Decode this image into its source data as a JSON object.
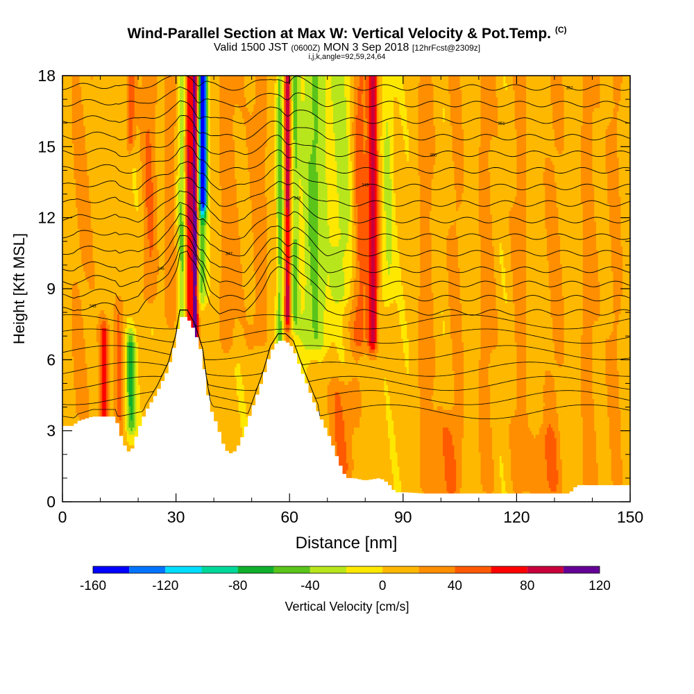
{
  "chart_data": {
    "type": "heatmap",
    "title": "Wind-Parallel Section at Max W: Vertical Velocity & Pot.Temp.",
    "title_mark": "(C)",
    "subtitle": {
      "valid": "Valid 1500 JST",
      "utc": "(0600Z)",
      "date": "MON 3 Sep 2018",
      "forecast": "[12hrFcst@2309z]"
    },
    "grid_info": "i,j,k,angle=92,59,24,64",
    "xlabel": "Distance [nm]",
    "ylabel": "Height [Kft MSL]",
    "xlim": [
      0,
      150
    ],
    "ylim": [
      0,
      18
    ],
    "x_ticks": [
      "0",
      "30",
      "60",
      "90",
      "120",
      "150"
    ],
    "y_ticks": [
      "0",
      "3",
      "6",
      "9",
      "12",
      "15",
      "18"
    ],
    "colorbar": {
      "label": "Vertical Velocity [cm/s]",
      "tick_labels": [
        "-160",
        "-120",
        "-80",
        "-40",
        "0",
        "40",
        "80",
        "120"
      ],
      "bins": [
        -160,
        -140,
        -120,
        -100,
        -80,
        -60,
        -40,
        -20,
        0,
        20,
        40,
        60,
        80,
        100,
        120
      ],
      "colors": [
        "#0000ff",
        "#0074ff",
        "#00ddff",
        "#00d89a",
        "#10b02c",
        "#5ac41a",
        "#b8e61c",
        "#ffe800",
        "#ffb800",
        "#ff8e00",
        "#ff5a00",
        "#ff0000",
        "#c8003c",
        "#640096"
      ]
    },
    "terrain_kft": [
      [
        0,
        3.2
      ],
      [
        3,
        3.2
      ],
      [
        4,
        3.4
      ],
      [
        8,
        3.6
      ],
      [
        14,
        3.6
      ],
      [
        16,
        2.5
      ],
      [
        18,
        2.0
      ],
      [
        20,
        3.0
      ],
      [
        22,
        3.8
      ],
      [
        25,
        4.6
      ],
      [
        28,
        5.6
      ],
      [
        30,
        6.8
      ],
      [
        31,
        7.8
      ],
      [
        33,
        7.8
      ],
      [
        35,
        7.2
      ],
      [
        37,
        6.2
      ],
      [
        38,
        5.0
      ],
      [
        39,
        4.0
      ],
      [
        41,
        3.2
      ],
      [
        43,
        2.2
      ],
      [
        45,
        2.0
      ],
      [
        47,
        2.5
      ],
      [
        49,
        3.4
      ],
      [
        51,
        4.3
      ],
      [
        53,
        5.2
      ],
      [
        55,
        6.3
      ],
      [
        57,
        6.8
      ],
      [
        59,
        6.8
      ],
      [
        61,
        6.5
      ],
      [
        63,
        5.6
      ],
      [
        65,
        4.8
      ],
      [
        67,
        4.0
      ],
      [
        69,
        3.3
      ],
      [
        71,
        2.6
      ],
      [
        73,
        1.7
      ],
      [
        75,
        1.0
      ],
      [
        77,
        1.0
      ],
      [
        80,
        0.9
      ],
      [
        84,
        1.0
      ],
      [
        86,
        0.8
      ],
      [
        88,
        0.4
      ],
      [
        91,
        0.4
      ],
      [
        95,
        0.35
      ],
      [
        100,
        0.35
      ],
      [
        110,
        0.35
      ],
      [
        120,
        0.35
      ],
      [
        130,
        0.35
      ],
      [
        134,
        0.35
      ],
      [
        136,
        0.7
      ],
      [
        145,
        0.7
      ],
      [
        150,
        0.7
      ]
    ],
    "isentrope_base_kft": [
      8.0,
      8.6,
      9.2,
      9.8,
      10.5,
      11.2,
      11.9,
      12.6,
      13.3,
      14.0,
      14.7,
      15.4,
      16.1,
      16.8,
      17.5
    ],
    "shallow_isentrope_base_kft": [
      7.6,
      7.0,
      6.3,
      5.6,
      5.0,
      4.4,
      3.8
    ],
    "isentrope_labels": [
      "345",
      "346",
      "347",
      "348",
      "349",
      "350",
      "351",
      "352"
    ],
    "w_features": [
      {
        "x": 35.0,
        "w": 120,
        "sx": 0.9,
        "zmin": 6.5,
        "zmax": 18
      },
      {
        "x": 33.3,
        "w": 70,
        "sx": 0.8,
        "zmin": 7.5,
        "zmax": 18
      },
      {
        "x": 37.2,
        "w": -150,
        "sx": 0.9,
        "zmin": 13.0,
        "zmax": 18
      },
      {
        "x": 36.7,
        "w": -60,
        "sx": 1.4,
        "zmin": 9.0,
        "zmax": 18
      },
      {
        "x": 31.5,
        "w": -45,
        "sx": 1.0,
        "zmin": 7.5,
        "zmax": 18
      },
      {
        "x": 59.5,
        "w": 90,
        "sx": 0.8,
        "zmin": 8.0,
        "zmax": 18
      },
      {
        "x": 57.5,
        "w": -55,
        "sx": 0.9,
        "zmin": 6.0,
        "zmax": 18
      },
      {
        "x": 61.5,
        "w": -45,
        "sx": 1.0,
        "zmin": 8.0,
        "zmax": 18
      },
      {
        "x": 66.5,
        "w": -50,
        "sx": 3.5,
        "zmin": 7.0,
        "zmax": 18
      },
      {
        "x": 74.0,
        "w": -35,
        "sx": 3.0,
        "zmin": 9.0,
        "zmax": 18
      },
      {
        "x": 82.0,
        "w": 80,
        "sx": 1.4,
        "zmin": 7.0,
        "zmax": 18
      },
      {
        "x": 78.5,
        "w": 45,
        "sx": 2.0,
        "zmin": 7.0,
        "zmax": 18
      },
      {
        "x": 86.0,
        "w": -30,
        "sx": 1.5,
        "zmin": 9.0,
        "zmax": 18
      },
      {
        "x": 18.0,
        "w": -70,
        "sx": 1.3,
        "zmin": 3.5,
        "zmax": 6.5
      },
      {
        "x": 11.0,
        "w": 65,
        "sx": 1.2,
        "zmin": 3.8,
        "zmax": 7.0
      },
      {
        "x": 15.0,
        "w": 35,
        "sx": 1.5,
        "zmin": 3.5,
        "zmax": 8.0
      },
      {
        "x": 74.0,
        "w": 35,
        "sx": 4.0,
        "zmin": 1.5,
        "zmax": 4.5
      },
      {
        "x": 18.0,
        "w": 50,
        "sx": 1.2,
        "zmin": 15.5,
        "zmax": 18
      },
      {
        "x": 23.0,
        "w": 35,
        "sx": 2.0,
        "zmin": 9.0,
        "zmax": 18
      },
      {
        "x": 28.5,
        "w": 30,
        "sx": 1.5,
        "zmin": 8.0,
        "zmax": 18
      },
      {
        "x": 44.0,
        "w": 25,
        "sx": 3.0,
        "zmin": 7.0,
        "zmax": 18
      },
      {
        "x": 52.0,
        "w": 25,
        "sx": 2.5,
        "zmin": 7.0,
        "zmax": 18
      },
      {
        "x": 5.0,
        "w": 20,
        "sx": 3.0,
        "zmin": 4.0,
        "zmax": 18
      },
      {
        "x": 96.0,
        "w": 22,
        "sx": 2.5,
        "zmin": 1.0,
        "zmax": 18
      },
      {
        "x": 104.0,
        "w": 22,
        "sx": 2.0,
        "zmin": 1.0,
        "zmax": 18
      },
      {
        "x": 112.0,
        "w": 22,
        "sx": 2.5,
        "zmin": 1.0,
        "zmax": 18
      },
      {
        "x": 121.0,
        "w": 22,
        "sx": 2.5,
        "zmin": 1.0,
        "zmax": 18
      },
      {
        "x": 130.0,
        "w": 22,
        "sx": 2.5,
        "zmin": 1.0,
        "zmax": 18
      },
      {
        "x": 139.0,
        "w": 22,
        "sx": 2.5,
        "zmin": 1.0,
        "zmax": 18
      },
      {
        "x": 146.0,
        "w": 22,
        "sx": 2.0,
        "zmin": 1.0,
        "zmax": 18
      },
      {
        "x": 101.0,
        "w": 25,
        "sx": 4.0,
        "zmin": 0.3,
        "zmax": 3.0
      },
      {
        "x": 127.0,
        "w": 25,
        "sx": 3.5,
        "zmin": 0.3,
        "zmax": 2.5
      }
    ]
  }
}
